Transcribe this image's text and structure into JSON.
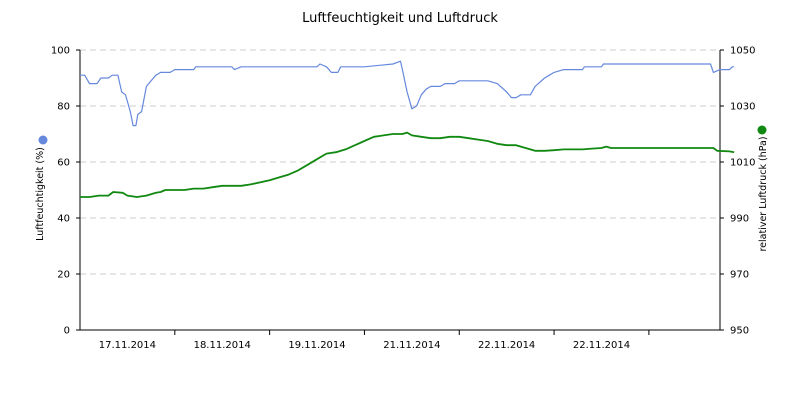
{
  "chart_data": {
    "type": "line",
    "title": "Luftfeuchtigkeit und Luftdruck",
    "y_left": {
      "label": "Luftfeuchtigkeit (%)",
      "min": 0,
      "max": 100,
      "ticks": [
        "0",
        "20",
        "40",
        "60",
        "80",
        "100"
      ]
    },
    "y_right": {
      "label": "relativer Luftdruck (hPa)",
      "min": 950,
      "max": 1050,
      "ticks": [
        "950",
        "970",
        "990",
        "1010",
        "1030",
        "1050"
      ]
    },
    "x_range": [
      0,
      6.75
    ],
    "x_ticks": [
      {
        "pos": 0.5,
        "label": "17.11.2014"
      },
      {
        "pos": 1.5,
        "label": "18.11.2014"
      },
      {
        "pos": 2.5,
        "label": "19.11.2014"
      },
      {
        "pos": 3.5,
        "label": "21.11.2014"
      },
      {
        "pos": 4.5,
        "label": "22.11.2014"
      },
      {
        "pos": 5.5,
        "label": "22.11.2014"
      }
    ],
    "x_gridlines": [
      1,
      2,
      3,
      4,
      5,
      6
    ],
    "grid": true,
    "series": [
      {
        "axis": "left",
        "color": "#6688dd",
        "points": [
          [
            0,
            91
          ],
          [
            0.05,
            91
          ],
          [
            0.1,
            88
          ],
          [
            0.18,
            88
          ],
          [
            0.22,
            90
          ],
          [
            0.3,
            90
          ],
          [
            0.34,
            91
          ],
          [
            0.4,
            91
          ],
          [
            0.44,
            85
          ],
          [
            0.48,
            84
          ],
          [
            0.53,
            78
          ],
          [
            0.56,
            73
          ],
          [
            0.59,
            73
          ],
          [
            0.61,
            77
          ],
          [
            0.65,
            78
          ],
          [
            0.7,
            87
          ],
          [
            0.75,
            89
          ],
          [
            0.8,
            91
          ],
          [
            0.85,
            92
          ],
          [
            0.95,
            92
          ],
          [
            1.0,
            93
          ],
          [
            1.2,
            93
          ],
          [
            1.22,
            94
          ],
          [
            1.6,
            94
          ],
          [
            1.63,
            93
          ],
          [
            1.7,
            94
          ],
          [
            2.5,
            94
          ],
          [
            2.53,
            95
          ],
          [
            2.6,
            94
          ],
          [
            2.65,
            92
          ],
          [
            2.72,
            92
          ],
          [
            2.75,
            94
          ],
          [
            3.0,
            94
          ],
          [
            3.3,
            95
          ],
          [
            3.38,
            96
          ],
          [
            3.4,
            93
          ],
          [
            3.45,
            85
          ],
          [
            3.5,
            79
          ],
          [
            3.55,
            80
          ],
          [
            3.6,
            84
          ],
          [
            3.65,
            86
          ],
          [
            3.7,
            87
          ],
          [
            3.8,
            87
          ],
          [
            3.85,
            88
          ],
          [
            3.95,
            88
          ],
          [
            4.0,
            89
          ],
          [
            4.3,
            89
          ],
          [
            4.4,
            88
          ],
          [
            4.5,
            85
          ],
          [
            4.55,
            83
          ],
          [
            4.6,
            83
          ],
          [
            4.65,
            84
          ],
          [
            4.75,
            84
          ],
          [
            4.8,
            87
          ],
          [
            4.9,
            90
          ],
          [
            4.95,
            91
          ],
          [
            5.0,
            92
          ],
          [
            5.1,
            93
          ],
          [
            5.3,
            93
          ],
          [
            5.32,
            94
          ],
          [
            5.5,
            94
          ],
          [
            5.52,
            95
          ],
          [
            6.65,
            95
          ],
          [
            6.68,
            92
          ],
          [
            6.75,
            93
          ],
          [
            6.85,
            93
          ],
          [
            6.88,
            94
          ],
          [
            6.9,
            94
          ]
        ]
      },
      {
        "axis": "right",
        "color": "#118811",
        "points": [
          [
            0,
            997.5
          ],
          [
            0.1,
            997.5
          ],
          [
            0.2,
            998
          ],
          [
            0.3,
            998
          ],
          [
            0.35,
            999.3
          ],
          [
            0.45,
            999
          ],
          [
            0.5,
            998
          ],
          [
            0.6,
            997.5
          ],
          [
            0.7,
            998
          ],
          [
            0.8,
            999
          ],
          [
            0.85,
            999.3
          ],
          [
            0.9,
            1000
          ],
          [
            1.0,
            1000
          ],
          [
            1.1,
            1000
          ],
          [
            1.2,
            1000.5
          ],
          [
            1.3,
            1000.5
          ],
          [
            1.4,
            1001
          ],
          [
            1.5,
            1001.5
          ],
          [
            1.6,
            1001.5
          ],
          [
            1.7,
            1001.5
          ],
          [
            1.8,
            1002
          ],
          [
            2.0,
            1003.5
          ],
          [
            2.1,
            1004.5
          ],
          [
            2.2,
            1005.5
          ],
          [
            2.3,
            1007
          ],
          [
            2.4,
            1009
          ],
          [
            2.5,
            1011
          ],
          [
            2.6,
            1013
          ],
          [
            2.7,
            1013.5
          ],
          [
            2.8,
            1014.5
          ],
          [
            2.9,
            1016
          ],
          [
            3.0,
            1017.5
          ],
          [
            3.1,
            1019
          ],
          [
            3.2,
            1019.5
          ],
          [
            3.3,
            1020
          ],
          [
            3.4,
            1020
          ],
          [
            3.45,
            1020.5
          ],
          [
            3.5,
            1019.5
          ],
          [
            3.6,
            1019
          ],
          [
            3.7,
            1018.5
          ],
          [
            3.8,
            1018.5
          ],
          [
            3.9,
            1019
          ],
          [
            4.0,
            1019
          ],
          [
            4.1,
            1018.5
          ],
          [
            4.2,
            1018
          ],
          [
            4.3,
            1017.5
          ],
          [
            4.4,
            1016.5
          ],
          [
            4.5,
            1016
          ],
          [
            4.6,
            1016
          ],
          [
            4.7,
            1015
          ],
          [
            4.8,
            1014
          ],
          [
            4.9,
            1014
          ],
          [
            5.0,
            1014.2
          ],
          [
            5.1,
            1014.5
          ],
          [
            5.2,
            1014.5
          ],
          [
            5.3,
            1014.5
          ],
          [
            5.4,
            1014.8
          ],
          [
            5.5,
            1015
          ],
          [
            5.55,
            1015.5
          ],
          [
            5.6,
            1015
          ],
          [
            6.5,
            1015
          ],
          [
            6.68,
            1015
          ],
          [
            6.72,
            1014
          ],
          [
            6.85,
            1013.8
          ],
          [
            6.9,
            1013.5
          ]
        ]
      }
    ]
  }
}
